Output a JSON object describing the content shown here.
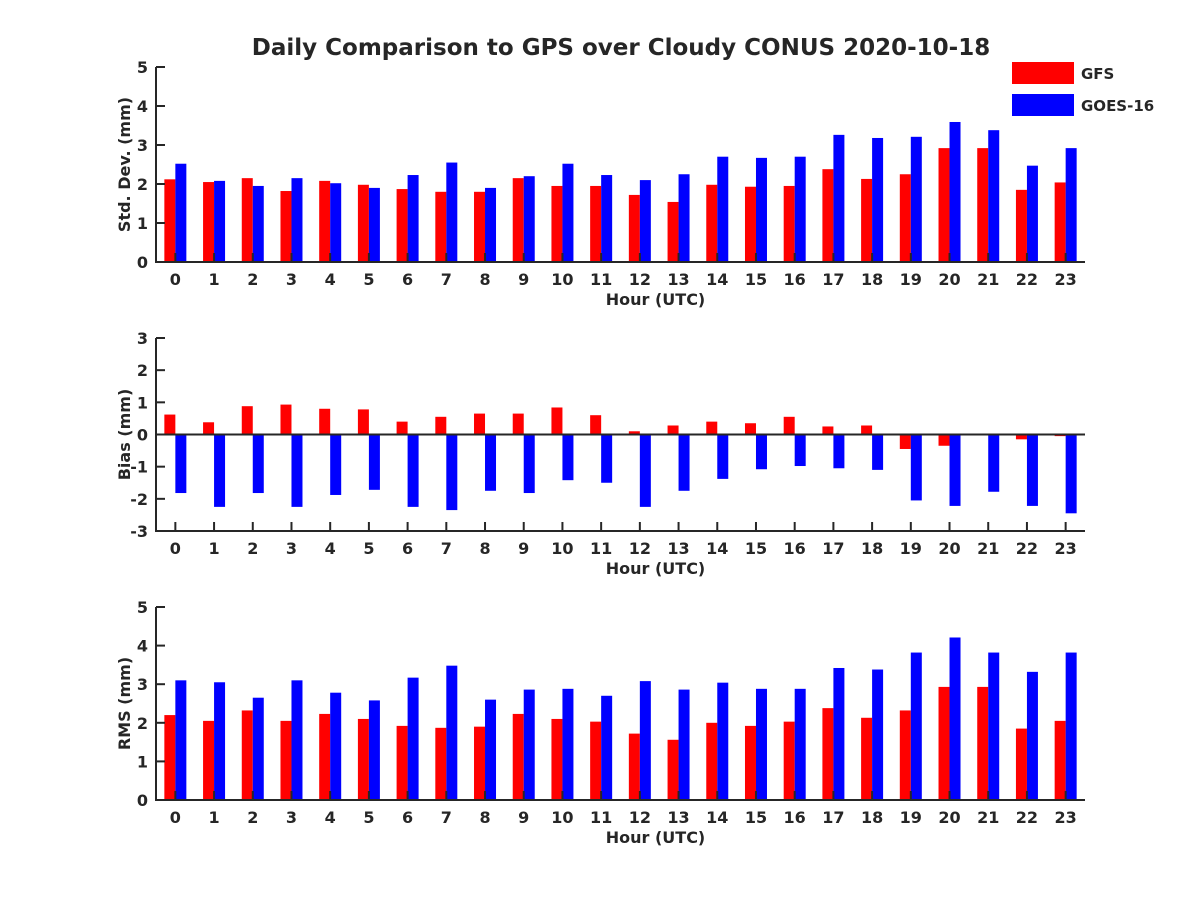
{
  "title": "Daily Comparison to GPS over Cloudy CONUS 2020-10-18",
  "colors": {
    "GFS": "#ff0000",
    "GOES-16": "#0000ff",
    "axis": "#262626"
  },
  "chart_data": [
    {
      "type": "bar",
      "xlabel": "Hour (UTC)",
      "ylabel": "Std. Dev. (mm)",
      "ylim": [
        0,
        5
      ],
      "yticks": [
        0,
        1,
        2,
        3,
        4,
        5
      ],
      "categories": [
        "0",
        "1",
        "2",
        "3",
        "4",
        "5",
        "6",
        "7",
        "8",
        "9",
        "10",
        "11",
        "12",
        "13",
        "14",
        "15",
        "16",
        "17",
        "18",
        "19",
        "20",
        "21",
        "22",
        "23"
      ],
      "legend": "top-right",
      "series": [
        {
          "name": "GFS",
          "values": [
            2.12,
            2.05,
            2.15,
            1.82,
            2.08,
            1.98,
            1.87,
            1.8,
            1.8,
            2.15,
            1.95,
            1.95,
            1.72,
            1.54,
            1.98,
            1.93,
            1.95,
            2.38,
            2.13,
            2.25,
            2.92,
            2.92,
            1.85,
            2.04
          ]
        },
        {
          "name": "GOES-16",
          "values": [
            2.52,
            2.08,
            1.95,
            2.15,
            2.02,
            1.9,
            2.23,
            2.55,
            1.9,
            2.2,
            2.52,
            2.23,
            2.1,
            2.25,
            2.7,
            2.67,
            2.7,
            3.26,
            3.18,
            3.21,
            3.59,
            3.38,
            2.47,
            2.92
          ]
        }
      ]
    },
    {
      "type": "bar",
      "xlabel": "Hour (UTC)",
      "ylabel": "Bias (mm)",
      "ylim": [
        -3,
        3
      ],
      "yticks": [
        -3,
        -2,
        -1,
        0,
        1,
        2,
        3
      ],
      "categories": [
        "0",
        "1",
        "2",
        "3",
        "4",
        "5",
        "6",
        "7",
        "8",
        "9",
        "10",
        "11",
        "12",
        "13",
        "14",
        "15",
        "16",
        "17",
        "18",
        "19",
        "20",
        "21",
        "22",
        "23"
      ],
      "series": [
        {
          "name": "GFS",
          "values": [
            0.62,
            0.38,
            0.88,
            0.93,
            0.8,
            0.78,
            0.4,
            0.55,
            0.65,
            0.65,
            0.84,
            0.6,
            0.1,
            0.28,
            0.4,
            0.35,
            0.55,
            0.25,
            0.28,
            -0.45,
            -0.35,
            0.02,
            -0.15,
            -0.05
          ]
        },
        {
          "name": "GOES-16",
          "values": [
            -1.82,
            -2.25,
            -1.82,
            -2.25,
            -1.88,
            -1.72,
            -2.25,
            -2.35,
            -1.75,
            -1.82,
            -1.42,
            -1.5,
            -2.25,
            -1.75,
            -1.38,
            -1.08,
            -0.98,
            -1.05,
            -1.1,
            -2.05,
            -2.22,
            -1.78,
            -2.22,
            -2.45
          ]
        }
      ]
    },
    {
      "type": "bar",
      "xlabel": "Hour (UTC)",
      "ylabel": "RMS (mm)",
      "ylim": [
        0,
        5
      ],
      "yticks": [
        0,
        1,
        2,
        3,
        4,
        5
      ],
      "categories": [
        "0",
        "1",
        "2",
        "3",
        "4",
        "5",
        "6",
        "7",
        "8",
        "9",
        "10",
        "11",
        "12",
        "13",
        "14",
        "15",
        "16",
        "17",
        "18",
        "19",
        "20",
        "21",
        "22",
        "23"
      ],
      "series": [
        {
          "name": "GFS",
          "values": [
            2.2,
            2.05,
            2.32,
            2.05,
            2.23,
            2.1,
            1.92,
            1.87,
            1.9,
            2.23,
            2.1,
            2.03,
            1.72,
            1.56,
            2.0,
            1.92,
            2.03,
            2.38,
            2.13,
            2.32,
            2.93,
            2.93,
            1.85,
            2.05
          ]
        },
        {
          "name": "GOES-16",
          "values": [
            3.1,
            3.05,
            2.65,
            3.1,
            2.78,
            2.58,
            3.17,
            3.48,
            2.6,
            2.86,
            2.88,
            2.7,
            3.08,
            2.86,
            3.04,
            2.88,
            2.88,
            3.42,
            3.38,
            3.82,
            4.21,
            3.82,
            3.32,
            3.82
          ]
        }
      ]
    }
  ]
}
